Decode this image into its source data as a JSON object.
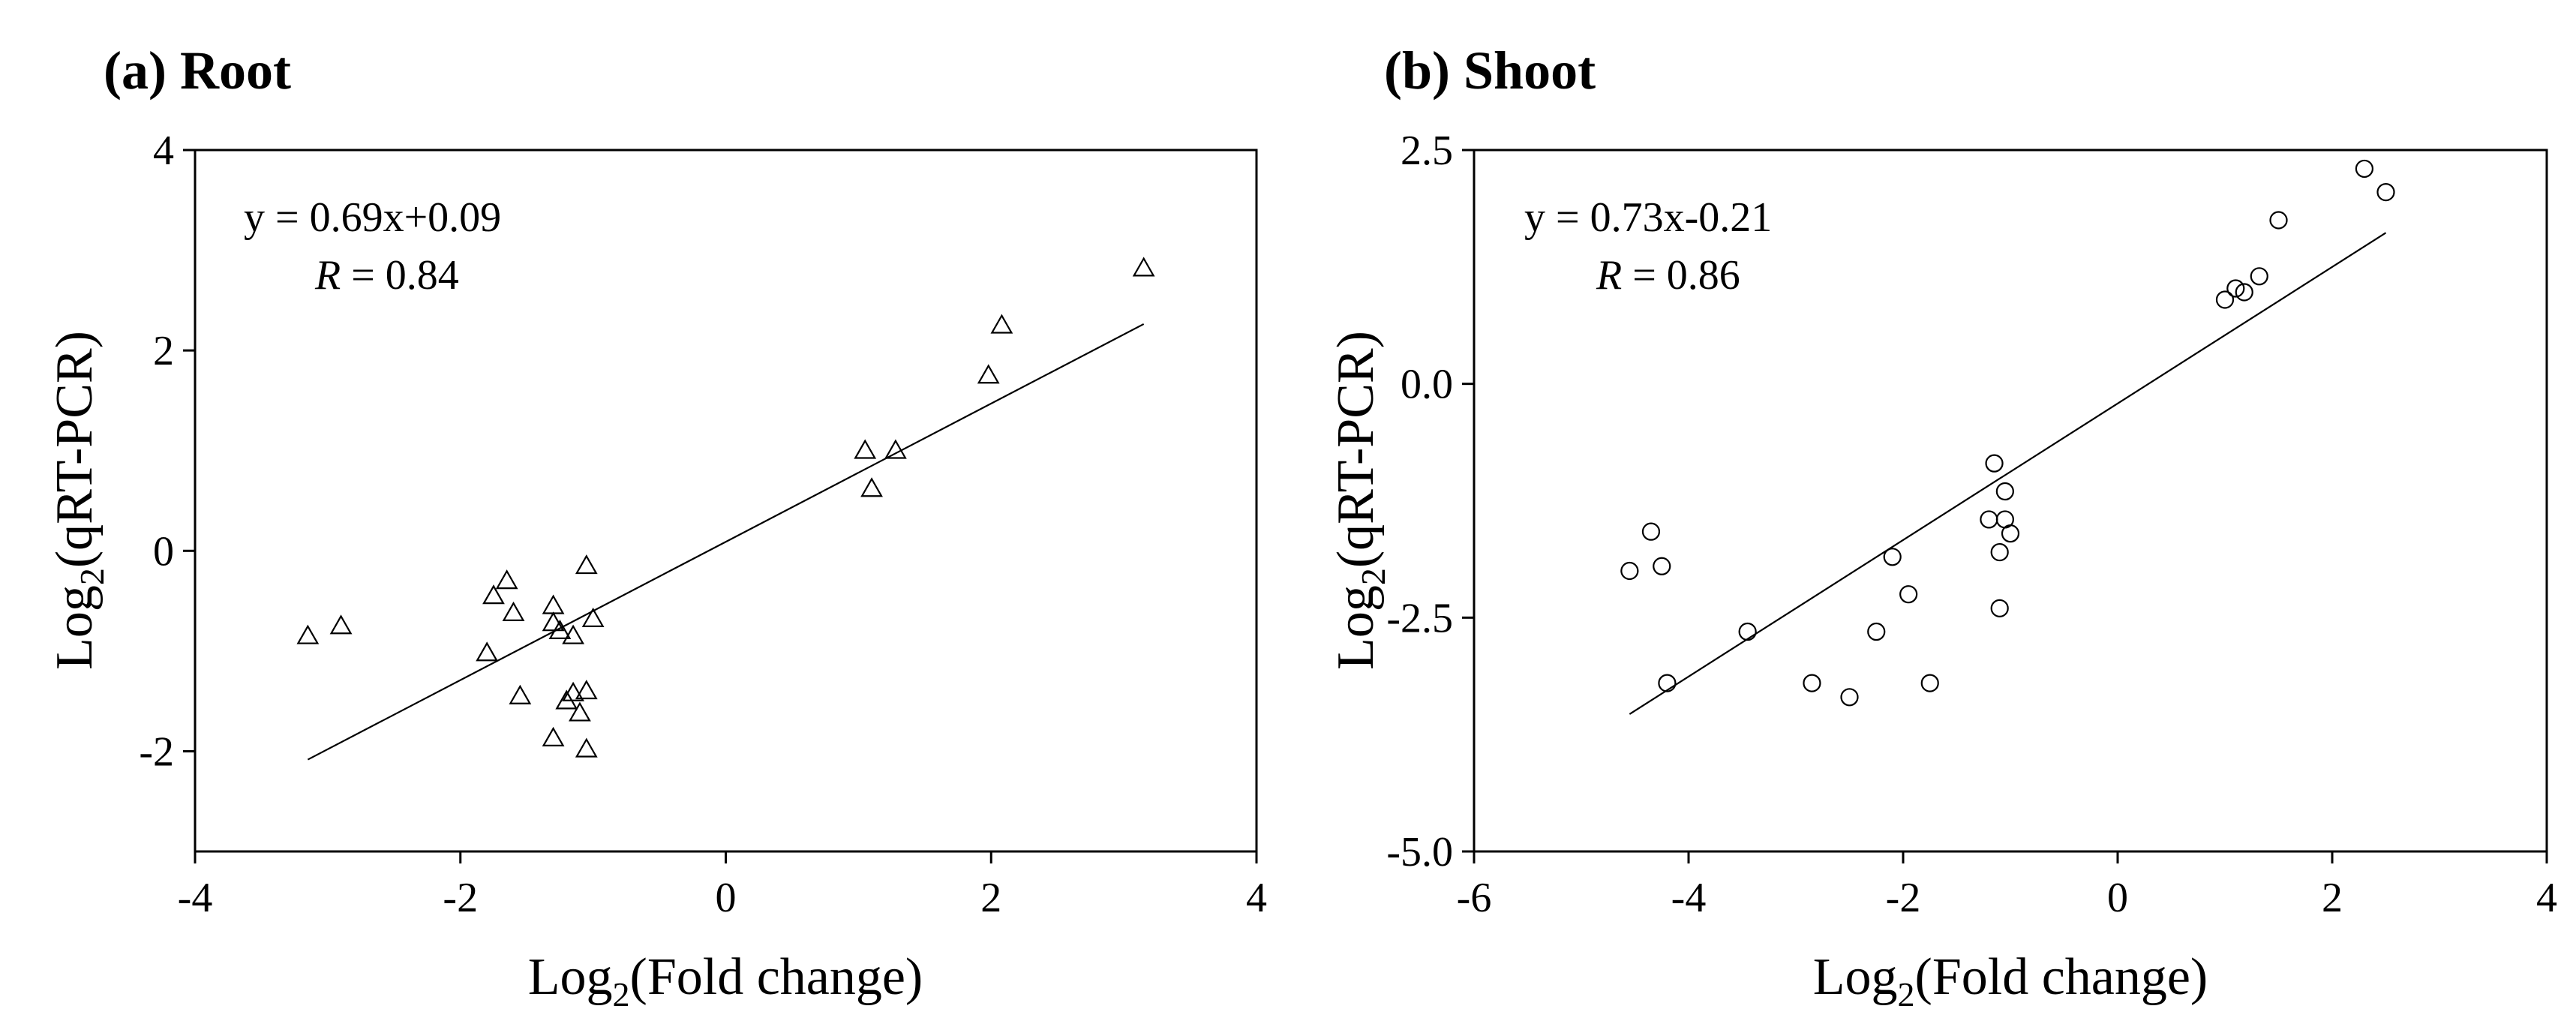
{
  "chart_data": [
    {
      "type": "scatter",
      "panel_label": "(a) Root",
      "xlabel": "Log",
      "xlabel_sub": "2",
      "xlabel_rest": "(Fold change)",
      "ylabel": "Log",
      "ylabel_sub": "2",
      "ylabel_rest": "(qRT-PCR)",
      "xlim": [
        -4,
        4
      ],
      "ylim": [
        -3,
        4
      ],
      "xticks": [
        -4,
        -2,
        0,
        2,
        4
      ],
      "yticks": [
        -2,
        0,
        2,
        4
      ],
      "xtick_labels": [
        "-4",
        "-2",
        "0",
        "2",
        "4"
      ],
      "ytick_labels": [
        "-2",
        "0",
        "2",
        "4"
      ],
      "marker": "triangle",
      "equation": "y = 0.69x+0.09",
      "r_symbol": "R",
      "r_value": " = 0.84",
      "fit": {
        "slope": 0.69,
        "intercept": 0.09,
        "x_range": [
          -3.15,
          3.15
        ]
      },
      "points": [
        [
          -3.15,
          -0.85
        ],
        [
          -2.9,
          -0.75
        ],
        [
          -1.8,
          -1.02
        ],
        [
          -1.75,
          -0.45
        ],
        [
          -1.65,
          -0.3
        ],
        [
          -1.6,
          -0.62
        ],
        [
          -1.55,
          -1.45
        ],
        [
          -1.3,
          -0.55
        ],
        [
          -1.3,
          -0.72
        ],
        [
          -1.3,
          -1.87
        ],
        [
          -1.25,
          -0.8
        ],
        [
          -1.2,
          -1.5
        ],
        [
          -1.15,
          -0.85
        ],
        [
          -1.15,
          -1.42
        ],
        [
          -1.1,
          -1.62
        ],
        [
          -1.05,
          -0.15
        ],
        [
          -1.05,
          -1.4
        ],
        [
          -1.05,
          -1.98
        ],
        [
          -1.0,
          -0.68
        ],
        [
          1.05,
          1.0
        ],
        [
          1.1,
          0.62
        ],
        [
          1.28,
          1.0
        ],
        [
          1.98,
          1.75
        ],
        [
          2.08,
          2.25
        ],
        [
          3.15,
          2.82
        ]
      ]
    },
    {
      "type": "scatter",
      "panel_label": "(b) Shoot",
      "xlabel": "Log",
      "xlabel_sub": "2",
      "xlabel_rest": "(Fold change)",
      "ylabel": "Log",
      "ylabel_sub": "2",
      "ylabel_rest": "(qRT-PCR)",
      "xlim": [
        -6,
        4
      ],
      "ylim": [
        -5,
        2.5
      ],
      "xticks": [
        -6,
        -4,
        -2,
        0,
        2,
        4
      ],
      "yticks": [
        -5,
        -2.5,
        0,
        2.5
      ],
      "xtick_labels": [
        "-6",
        "-4",
        "-2",
        "0",
        "2",
        "4"
      ],
      "ytick_labels": [
        "-5.0",
        "-2.5",
        "0.0",
        "2.5"
      ],
      "marker": "circle",
      "equation": "y = 0.73x-0.21",
      "r_symbol": "R",
      "r_value": " = 0.86",
      "fit": {
        "slope": 0.73,
        "intercept": -0.21,
        "x_range": [
          -4.55,
          2.5
        ]
      },
      "points": [
        [
          -4.55,
          -2.0
        ],
        [
          -4.35,
          -1.58
        ],
        [
          -4.25,
          -1.95
        ],
        [
          -4.2,
          -3.2
        ],
        [
          -3.45,
          -2.65
        ],
        [
          -2.85,
          -3.2
        ],
        [
          -2.5,
          -3.35
        ],
        [
          -2.25,
          -2.65
        ],
        [
          -2.1,
          -1.85
        ],
        [
          -1.95,
          -2.25
        ],
        [
          -1.75,
          -3.2
        ],
        [
          -1.2,
          -1.45
        ],
        [
          -1.15,
          -0.85
        ],
        [
          -1.1,
          -1.8
        ],
        [
          -1.1,
          -2.4
        ],
        [
          -1.05,
          -1.15
        ],
        [
          -1.05,
          -1.45
        ],
        [
          -1.0,
          -1.6
        ],
        [
          1.0,
          0.9
        ],
        [
          1.1,
          1.02
        ],
        [
          1.18,
          0.98
        ],
        [
          1.32,
          1.15
        ],
        [
          1.5,
          1.75
        ],
        [
          2.3,
          2.3
        ],
        [
          2.5,
          2.05
        ]
      ]
    }
  ]
}
